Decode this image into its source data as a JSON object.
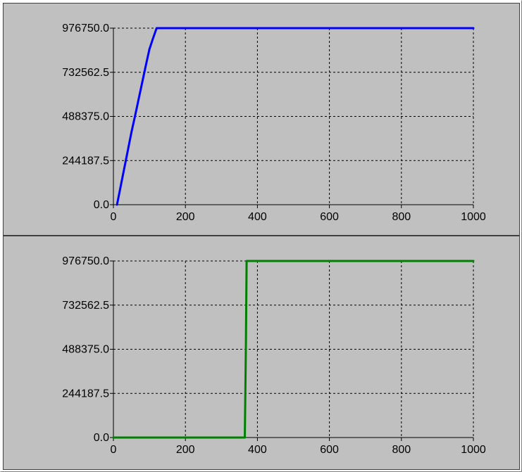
{
  "chart_data": [
    {
      "type": "line",
      "title": "",
      "xlabel": "",
      "ylabel": "",
      "xlim": [
        0,
        1000
      ],
      "ylim": [
        0,
        976750
      ],
      "grid": true,
      "x_ticks": [
        "0",
        "200",
        "400",
        "600",
        "800",
        "1000"
      ],
      "y_ticks": [
        "0.0",
        "244187.5",
        "488375.0",
        "732562.5",
        "976750.0"
      ],
      "series": [
        {
          "color": "#0000ff",
          "x": [
            10,
            25,
            40,
            50,
            60,
            75,
            90,
            100,
            110,
            120,
            1000
          ],
          "y": [
            0,
            150000,
            300000,
            400000,
            490000,
            630000,
            770000,
            860000,
            920000,
            976750,
            976750
          ]
        }
      ]
    },
    {
      "type": "line",
      "title": "",
      "xlabel": "",
      "ylabel": "",
      "xlim": [
        0,
        1000
      ],
      "ylim": [
        0,
        976750
      ],
      "grid": true,
      "x_ticks": [
        "0",
        "200",
        "400",
        "600",
        "800",
        "1000"
      ],
      "y_ticks": [
        "0.0",
        "244187.5",
        "488375.0",
        "732562.5",
        "976750.0"
      ],
      "series": [
        {
          "color": "#008000",
          "x": [
            0,
            365,
            368,
            370,
            372,
            1000
          ],
          "y": [
            0,
            0,
            500000,
            976750,
            976750,
            976750
          ]
        }
      ]
    }
  ]
}
